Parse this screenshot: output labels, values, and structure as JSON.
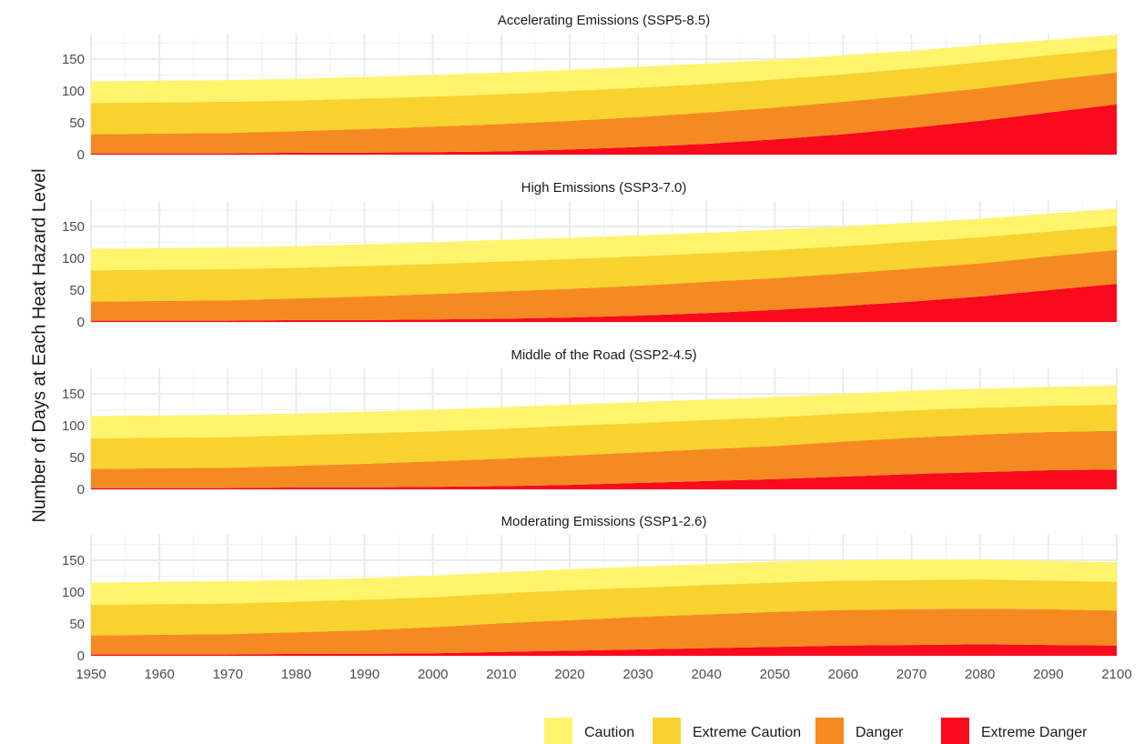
{
  "chart_data": {
    "type": "area",
    "stacked": true,
    "ylabel": "Number of Days at Each Heat Hazard Level",
    "xlabel": "",
    "x": [
      1950,
      1960,
      1970,
      1980,
      1990,
      2000,
      2010,
      2020,
      2030,
      2040,
      2050,
      2060,
      2070,
      2080,
      2090,
      2100
    ],
    "xticks": [
      1950,
      1960,
      1970,
      1980,
      1990,
      2000,
      2010,
      2020,
      2030,
      2040,
      2050,
      2060,
      2070,
      2080,
      2090,
      2100
    ],
    "xlim": [
      1950,
      2100
    ],
    "ylim": [
      0,
      190
    ],
    "yticks": [
      0,
      50,
      100,
      150
    ],
    "grid": true,
    "legend_position": "bottom-right",
    "colors": {
      "Caution": "#FFF46C",
      "Extreme Caution": "#F8D22E",
      "Danger": "#F68A22",
      "Extreme Danger": "#F90A1C"
    },
    "panels": [
      {
        "title": "Accelerating Emissions (SSP5-8.5)",
        "series": [
          {
            "name": "Extreme Danger",
            "values": [
              2,
              2,
              2,
              3,
              3,
              4,
              5,
              8,
              12,
              17,
              24,
              32,
              42,
              53,
              66,
              79
            ]
          },
          {
            "name": "Danger",
            "values": [
              30,
              31,
              32,
              34,
              37,
              40,
              43,
              45,
              47,
              49,
              50,
              51,
              51,
              51,
              51,
              50
            ]
          },
          {
            "name": "Extreme Caution",
            "values": [
              49,
              49,
              49,
              48,
              48,
              47,
              47,
              47,
              46,
              45,
              44,
              43,
              42,
              41,
              39,
              37
            ]
          },
          {
            "name": "Caution",
            "values": [
              34,
              34,
              34,
              34,
              34,
              34,
              34,
              33,
              33,
              32,
              31,
              30,
              28,
              27,
              24,
              22
            ]
          }
        ]
      },
      {
        "title": "High Emissions (SSP3-7.0)",
        "series": [
          {
            "name": "Extreme Danger",
            "values": [
              2,
              2,
              2,
              3,
              3,
              4,
              5,
              7,
              10,
              14,
              19,
              25,
              32,
              40,
              50,
              60
            ]
          },
          {
            "name": "Danger",
            "values": [
              30,
              31,
              32,
              34,
              37,
              40,
              43,
              45,
              47,
              49,
              50,
              51,
              52,
              52,
              53,
              53
            ]
          },
          {
            "name": "Extreme Caution",
            "values": [
              49,
              49,
              49,
              48,
              48,
              47,
              47,
              47,
              46,
              45,
              44,
              43,
              42,
              41,
              39,
              38
            ]
          },
          {
            "name": "Caution",
            "values": [
              34,
              34,
              34,
              34,
              34,
              34,
              34,
              33,
              33,
              32,
              32,
              31,
              30,
              29,
              28,
              27
            ]
          }
        ]
      },
      {
        "title": "Middle of the Road (SSP2-4.5)",
        "series": [
          {
            "name": "Extreme Danger",
            "values": [
              2,
              2,
              2,
              3,
              3,
              4,
              5,
              7,
              10,
              13,
              16,
              20,
              24,
              27,
              30,
              31
            ]
          },
          {
            "name": "Danger",
            "values": [
              30,
              31,
              32,
              34,
              37,
              40,
              43,
              46,
              48,
              50,
              52,
              55,
              57,
              59,
              60,
              61
            ]
          },
          {
            "name": "Extreme Caution",
            "values": [
              48,
              48,
              48,
              48,
              48,
              47,
              47,
              47,
              46,
              46,
              45,
              44,
              43,
              42,
              41,
              41
            ]
          },
          {
            "name": "Caution",
            "values": [
              35,
              35,
              35,
              34,
              34,
              34,
              34,
              33,
              33,
              32,
              32,
              31,
              31,
              30,
              30,
              30
            ]
          }
        ]
      },
      {
        "title": "Moderating Emissions (SSP1-2.6)",
        "series": [
          {
            "name": "Extreme Danger",
            "values": [
              2,
              2,
              2,
              3,
              3,
              4,
              6,
              8,
              10,
              12,
              14,
              16,
              17,
              18,
              17,
              16
            ]
          },
          {
            "name": "Danger",
            "values": [
              30,
              31,
              32,
              34,
              37,
              41,
              45,
              48,
              51,
              53,
              55,
              56,
              56,
              56,
              56,
              55
            ]
          },
          {
            "name": "Extreme Caution",
            "values": [
              48,
              48,
              48,
              48,
              48,
              47,
              47,
              47,
              46,
              46,
              46,
              46,
              46,
              46,
              45,
              45
            ]
          },
          {
            "name": "Caution",
            "values": [
              35,
              35,
              35,
              34,
              34,
              34,
              33,
              33,
              33,
              33,
              33,
              32,
              32,
              31,
              31,
              31
            ]
          }
        ]
      }
    ],
    "legend": [
      "Caution",
      "Extreme Caution",
      "Danger",
      "Extreme Danger"
    ]
  }
}
